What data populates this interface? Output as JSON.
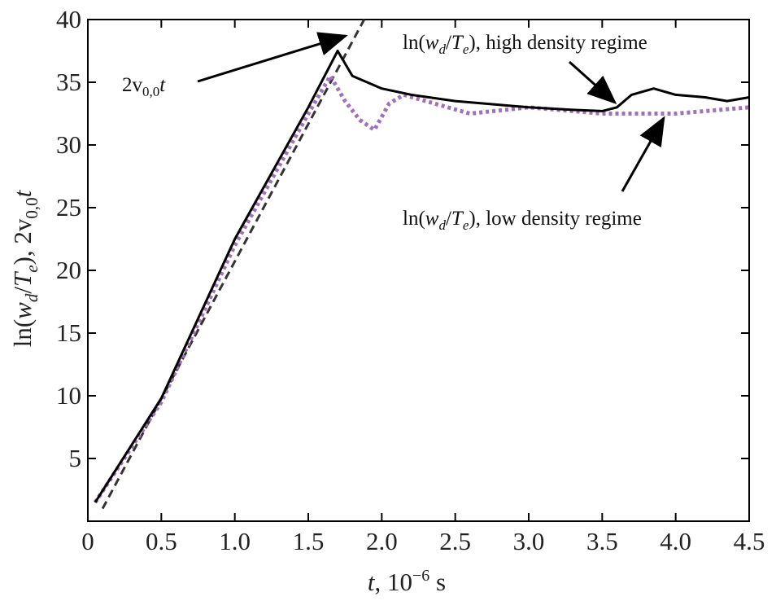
{
  "chart_data": {
    "type": "line",
    "xlim": [
      0,
      4.5
    ],
    "ylim": [
      0,
      40
    ],
    "xticks": [
      0,
      0.5,
      {
        "value": 1,
        "label": "1.0"
      },
      1.5,
      {
        "value": 2,
        "label": "2.0"
      },
      2.5,
      {
        "value": 3,
        "label": "3.0"
      },
      3.5,
      {
        "value": 4,
        "label": "4.0"
      },
      4.5
    ],
    "yticks": [
      5,
      10,
      15,
      20,
      25,
      30,
      35,
      40
    ],
    "xlabel": [
      "t",
      ", 10",
      "−6",
      " s"
    ],
    "ylabel": [
      "ln(",
      "w",
      "d",
      "/",
      "T",
      "e",
      "), 2v",
      "0,0",
      "t"
    ],
    "annotations": [
      {
        "text": [
          "2v",
          "0,0",
          "t"
        ]
      },
      {
        "text": [
          "ln(",
          "w",
          "d",
          "/",
          "T",
          "e",
          "), high density regime"
        ]
      },
      {
        "text": [
          "ln(",
          "w",
          "d",
          "/",
          "T",
          "e",
          "), low density regime"
        ]
      }
    ],
    "series": [
      {
        "color": "#333333",
        "dash": "dashed",
        "x": [
          0.1,
          1.88
        ],
        "values": [
          1,
          40
        ]
      },
      {
        "color": "#a070b8",
        "dash": "dotted",
        "x": [
          0.05,
          0.5,
          1.0,
          1.5,
          1.65,
          1.75,
          1.85,
          1.95,
          2.05,
          2.15,
          2.3,
          2.6,
          3.0,
          3.5,
          4.0,
          4.3,
          4.5
        ],
        "values": [
          1.5,
          9.5,
          22,
          32.5,
          35.5,
          33.5,
          32,
          31.2,
          33.3,
          34,
          33.5,
          32.5,
          33,
          32.5,
          32.5,
          32.8,
          33
        ]
      },
      {
        "color": "#000000",
        "dash": "solid",
        "x": [
          0.05,
          0.5,
          1.0,
          1.5,
          1.7,
          1.8,
          1.9,
          2.0,
          2.2,
          2.5,
          3.0,
          3.3,
          3.5,
          3.6,
          3.7,
          3.85,
          4.0,
          4.2,
          4.35,
          4.5
        ],
        "values": [
          1.5,
          9.8,
          22.5,
          33,
          37.5,
          35.5,
          35,
          34.5,
          34,
          33.5,
          33,
          32.8,
          32.7,
          33,
          34,
          34.5,
          34,
          33.8,
          33.5,
          33.8
        ]
      }
    ]
  }
}
